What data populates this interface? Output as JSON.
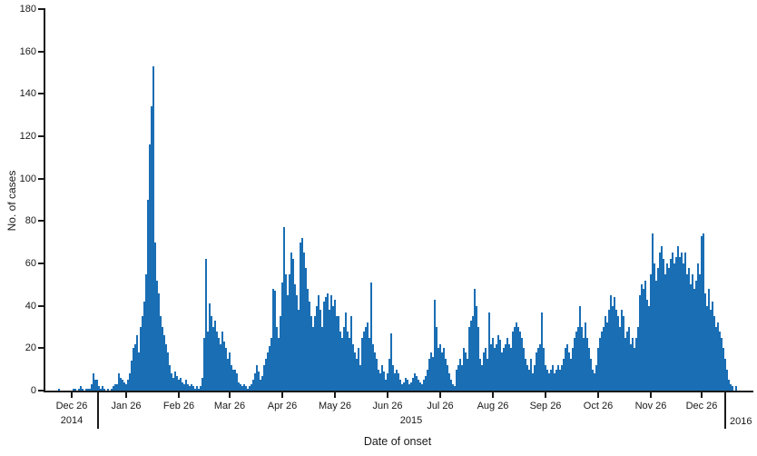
{
  "figure": {
    "y_axis_title": "No. of cases",
    "x_axis_title": "Date of onset"
  },
  "chart_data": {
    "type": "bar",
    "title": "",
    "xlabel": "Date of onset",
    "ylabel": "No. of cases",
    "ylim": [
      0,
      180
    ],
    "grid": false,
    "legend": "none",
    "bar_color": "#1a6eb4",
    "axis_color": "#1a1a1a",
    "y_ticks": [
      0,
      20,
      40,
      60,
      80,
      100,
      120,
      140,
      160,
      180
    ],
    "x_ticks": [
      {
        "label": "Dec 26",
        "day": 14
      },
      {
        "label": "Jan 26",
        "day": 44
      },
      {
        "label": "Feb 26",
        "day": 73
      },
      {
        "label": "Mar 26",
        "day": 101
      },
      {
        "label": "Apr 26",
        "day": 130
      },
      {
        "label": "May 26",
        "day": 159
      },
      {
        "label": "Jun 26",
        "day": 188
      },
      {
        "label": "Jul 26",
        "day": 217
      },
      {
        "label": "Aug 26",
        "day": 246
      },
      {
        "label": "Sep 26",
        "day": 275
      },
      {
        "label": "Oct 26",
        "day": 304
      },
      {
        "label": "Nov 26",
        "day": 333
      },
      {
        "label": "Dec 26",
        "day": 361
      }
    ],
    "year_separator_days": [
      28.5,
      374
    ],
    "year_labels": [
      {
        "label": "2014",
        "day": 14,
        "align": "center"
      },
      {
        "label": "2015",
        "day": 201,
        "align": "center"
      },
      {
        "label": "2016",
        "day": 374,
        "align": "left"
      }
    ],
    "x_unit": "daily date of onset",
    "values": [
      0,
      0,
      0,
      0,
      0,
      0,
      0,
      1,
      0,
      0,
      0,
      0,
      0,
      0,
      0,
      1,
      1,
      0,
      1,
      2,
      1,
      0,
      1,
      1,
      1,
      3,
      8,
      5,
      5,
      2,
      1,
      2,
      1,
      0,
      1,
      0,
      1,
      2,
      3,
      3,
      8,
      6,
      5,
      4,
      3,
      5,
      8,
      14,
      20,
      22,
      26,
      18,
      30,
      35,
      42,
      55,
      90,
      116,
      134,
      153,
      70,
      52,
      46,
      35,
      30,
      26,
      22,
      18,
      12,
      8,
      6,
      9,
      7,
      5,
      6,
      4,
      3,
      5,
      3,
      2,
      3,
      2,
      1,
      2,
      1,
      2,
      6,
      25,
      62,
      28,
      41,
      35,
      30,
      33,
      28,
      25,
      22,
      28,
      23,
      20,
      15,
      18,
      12,
      10,
      10,
      8,
      4,
      3,
      2,
      3,
      2,
      1,
      2,
      3,
      5,
      8,
      12,
      9,
      5,
      7,
      12,
      15,
      18,
      21,
      25,
      48,
      47,
      30,
      25,
      35,
      51,
      77,
      55,
      45,
      55,
      65,
      62,
      50,
      45,
      38,
      70,
      72,
      65,
      58,
      48,
      42,
      35,
      30,
      35,
      40,
      45,
      38,
      30,
      42,
      44,
      46,
      38,
      45,
      40,
      43,
      35,
      35,
      28,
      25,
      30,
      37,
      28,
      25,
      35,
      22,
      18,
      15,
      20,
      12,
      25,
      28,
      30,
      32,
      25,
      51,
      22,
      18,
      15,
      10,
      8,
      12,
      9,
      5,
      8,
      15,
      27,
      12,
      8,
      10,
      8,
      5,
      3,
      4,
      6,
      5,
      3,
      4,
      6,
      8,
      7,
      5,
      4,
      3,
      5,
      7,
      10,
      15,
      18,
      16,
      43,
      30,
      20,
      22,
      18,
      20,
      15,
      12,
      8,
      5,
      3,
      2,
      10,
      12,
      15,
      12,
      20,
      18,
      15,
      30,
      33,
      35,
      48,
      40,
      30,
      15,
      12,
      18,
      20,
      15,
      37,
      22,
      25,
      20,
      22,
      26,
      24,
      18,
      20,
      22,
      25,
      22,
      20,
      28,
      30,
      32,
      30,
      28,
      25,
      20,
      15,
      12,
      10,
      15,
      8,
      12,
      18,
      20,
      22,
      37,
      20,
      12,
      10,
      8,
      10,
      12,
      8,
      10,
      12,
      10,
      12,
      15,
      20,
      22,
      18,
      15,
      20,
      25,
      28,
      30,
      40,
      30,
      25,
      32,
      25,
      20,
      15,
      10,
      8,
      12,
      20,
      25,
      28,
      30,
      35,
      32,
      38,
      45,
      40,
      44,
      38,
      35,
      30,
      38,
      35,
      25,
      28,
      30,
      22,
      25,
      20,
      25,
      30,
      45,
      50,
      48,
      52,
      43,
      40,
      55,
      74,
      60,
      52,
      58,
      65,
      68,
      62,
      55,
      60,
      58,
      62,
      65,
      60,
      63,
      68,
      63,
      65,
      60,
      65,
      55,
      58,
      50,
      55,
      48,
      52,
      60,
      55,
      73,
      74,
      46,
      40,
      48,
      38,
      42,
      35,
      30,
      32,
      28,
      25,
      20,
      15,
      10,
      5,
      3,
      2,
      0,
      2,
      0,
      0,
      0,
      0,
      0,
      0,
      0,
      0,
      0
    ]
  }
}
